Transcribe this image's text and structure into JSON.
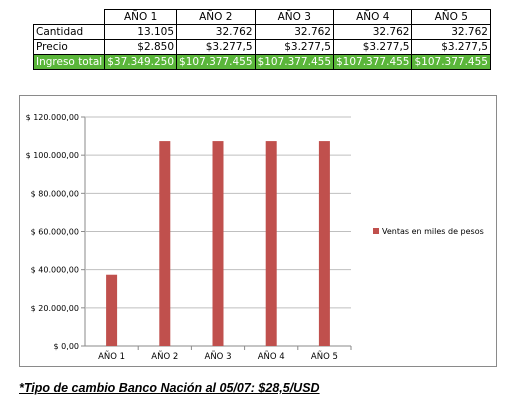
{
  "table": {
    "headers": [
      "AÑO 1",
      "AÑO 2",
      "AÑO 3",
      "AÑO 4",
      "AÑO 5"
    ],
    "rows": [
      {
        "label": "Cantidad",
        "cells": [
          "13.105",
          "32.762",
          "32.762",
          "32.762",
          "32.762"
        ]
      },
      {
        "label": "Precio",
        "cells": [
          "$2.850",
          "$3.277,5",
          "$3.277,5",
          "$3.277,5",
          "$3.277,5"
        ]
      },
      {
        "label": "Ingreso total",
        "cells": [
          "$37.349.250",
          "$107.377.455",
          "$107.377.455",
          "$107.377.455",
          "$107.377.455"
        ]
      }
    ],
    "total_row_color": "#5ab63a"
  },
  "chart_data": {
    "type": "bar",
    "categories": [
      "AÑO 1",
      "AÑO 2",
      "AÑO 3",
      "AÑO 4",
      "AÑO 5"
    ],
    "series": [
      {
        "name": "Ventas en miles de pesos",
        "values": [
          37349.25,
          107377.455,
          107377.455,
          107377.455,
          107377.455
        ],
        "color": "#c0504d"
      }
    ],
    "yticks": [
      "$ 0,00",
      "$ 20.000,00",
      "$ 40.000,00",
      "$ 60.000,00",
      "$ 80.000,00",
      "$ 100.000,00",
      "$ 120.000,00"
    ],
    "ylim": [
      0,
      120000
    ],
    "ytick_step": 20000,
    "grid": true,
    "legend_position": "right",
    "title": "",
    "xlabel": "",
    "ylabel": ""
  },
  "footnote": "*Tipo de cambio Banco Nación al 05/07: $28,5/USD"
}
